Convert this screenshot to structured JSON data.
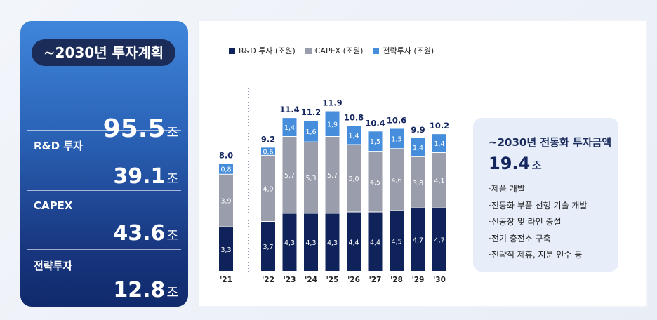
{
  "summary": {
    "title": "~2030년 투자계획",
    "total": "95.5",
    "unit": "조",
    "items": [
      {
        "label": "R&D 투자",
        "value": "39.1"
      },
      {
        "label": "CAPEX",
        "value": "43.6"
      },
      {
        "label": "전략투자",
        "value": "12.8"
      }
    ]
  },
  "chart_data": {
    "type": "bar",
    "stacked": true,
    "categories": [
      "'21",
      "'22",
      "'23",
      "'24",
      "'25",
      "'26",
      "'27",
      "'28",
      "'29",
      "'30"
    ],
    "series": [
      {
        "name": "R&D 투자 (조원)",
        "color": "#0f2259",
        "values": [
          3.3,
          3.7,
          4.3,
          4.3,
          4.3,
          4.4,
          4.4,
          4.5,
          4.7,
          4.7
        ],
        "labels": [
          "3,3",
          "3,7",
          "4,3",
          "4,3",
          "4,3",
          "4,4",
          "4,4",
          "4,5",
          "4,7",
          "4,7"
        ]
      },
      {
        "name": "CAPEX (조원)",
        "color": "#9a9dab",
        "values": [
          3.9,
          4.9,
          5.7,
          5.3,
          5.7,
          5.0,
          4.5,
          4.6,
          3.8,
          4.1
        ],
        "labels": [
          "3,9",
          "4,9",
          "5,7",
          "5,3",
          "5,7",
          "5,0",
          "4,5",
          "4,6",
          "3,8",
          "4,1"
        ]
      },
      {
        "name": "전략투자 (조원)",
        "color": "#468edb",
        "values": [
          0.8,
          0.6,
          1.4,
          1.6,
          1.9,
          1.4,
          1.5,
          1.5,
          1.4,
          1.4
        ],
        "labels": [
          "0,8",
          "0,6",
          "1,4",
          "1,6",
          "1,9",
          "1,4",
          "1,5",
          "1,5",
          "1,4",
          "1,4"
        ]
      }
    ],
    "totals": [
      "8.0",
      "9.2",
      "11.4",
      "11.2",
      "11.9",
      "10.8",
      "10.4",
      "10.6",
      "9.9",
      "10.2"
    ],
    "divider_after_index": 0,
    "grid": false
  },
  "ev_box": {
    "title": "~2030년 전동화 투자금액",
    "value": "19.4",
    "unit": "조",
    "items": [
      "·제품 개발",
      "·전동화 부품 선행 기술 개발",
      "·신공장 및 라인 증설",
      "·전기 충전소 구축",
      "·전략적 제휴, 지분 인수 등"
    ]
  }
}
